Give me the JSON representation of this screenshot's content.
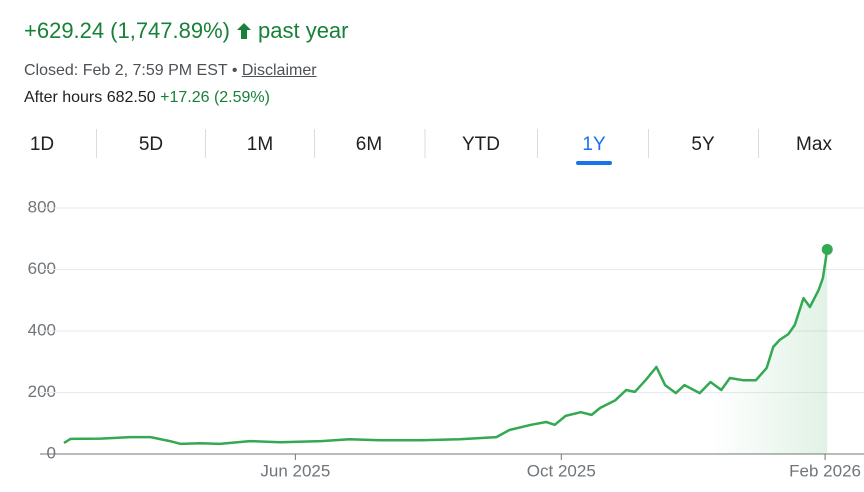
{
  "header": {
    "change": "+629.24",
    "change_pct": "(1,747.89%)",
    "period": "past year",
    "closed": "Closed: Feb 2, 7:59 PM EST",
    "separator": "•",
    "disclaimer": "Disclaimer",
    "after_hours_label": "After hours",
    "after_hours_price": "682.50",
    "after_hours_change": "+17.26 (2.59%)"
  },
  "tabs": {
    "items": [
      "1D",
      "5D",
      "1M",
      "6M",
      "YTD",
      "1Y",
      "5Y",
      "Max"
    ],
    "selected": "1Y"
  },
  "chart_data": {
    "type": "line",
    "color": "#34a853",
    "grid": true,
    "x": [
      0,
      3,
      17,
      31,
      40,
      49,
      54,
      63,
      72,
      86,
      100,
      119,
      132,
      146,
      165,
      183,
      200,
      206,
      216,
      223,
      227,
      232,
      239,
      244,
      248,
      255,
      260,
      264,
      269,
      274,
      278,
      283,
      287,
      294,
      299,
      304,
      308,
      314,
      320,
      325,
      328,
      331,
      335,
      338,
      342,
      345,
      349,
      351,
      353
    ],
    "values": [
      36,
      49,
      50,
      55,
      55,
      42,
      33,
      35,
      33,
      42,
      38,
      42,
      48,
      45,
      45,
      48,
      55,
      78,
      95,
      104,
      95,
      124,
      136,
      127,
      150,
      175,
      208,
      202,
      240,
      283,
      224,
      198,
      224,
      198,
      234,
      208,
      247,
      240,
      240,
      280,
      348,
      371,
      390,
      420,
      507,
      478,
      533,
      572,
      665.24
    ],
    "xlim": [
      0,
      370
    ],
    "xticks": [
      {
        "value": 107,
        "label": "Jun 2025"
      },
      {
        "value": 230,
        "label": "Oct 2025"
      },
      {
        "value": 352,
        "label": "Feb 2026"
      }
    ],
    "ylim": [
      0,
      800
    ],
    "yticks": [
      0,
      200,
      400,
      600,
      800
    ]
  }
}
